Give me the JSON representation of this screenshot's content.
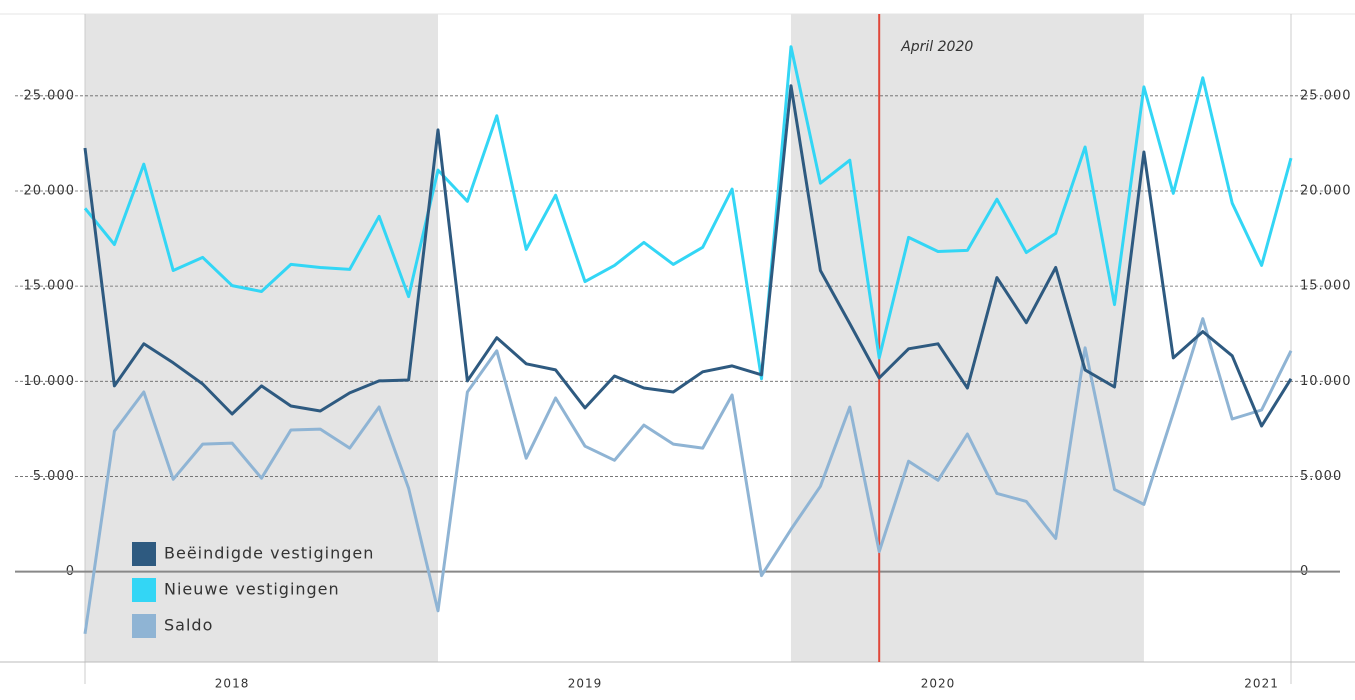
{
  "chart_data": {
    "type": "line",
    "categories": [
      null,
      null,
      null,
      null,
      null,
      "2018",
      null,
      null,
      null,
      null,
      null,
      null,
      null,
      null,
      null,
      null,
      null,
      "2019",
      null,
      null,
      null,
      null,
      null,
      null,
      null,
      null,
      null,
      null,
      null,
      "2020",
      null,
      null,
      null,
      null,
      null,
      null,
      null,
      null,
      null,
      null,
      "2021",
      null
    ],
    "series": [
      {
        "name": "Beëindigde vestigingen",
        "color": "#2e5a80",
        "values": [
          22260,
          9760,
          11970,
          10970,
          9860,
          8280,
          9760,
          8700,
          8440,
          9390,
          10020,
          10070,
          23210,
          10020,
          12290,
          10920,
          10600,
          8600,
          10280,
          9650,
          9440,
          10500,
          10810,
          10340,
          25530,
          15820,
          13030,
          10180,
          11710,
          11970,
          9650,
          15450,
          13080,
          15980,
          10600,
          9700,
          22050,
          11230,
          12610,
          11340,
          7650,
          10130
        ]
      },
      {
        "name": "Nieuwe vestigingen",
        "color": "#33d6f5",
        "values": [
          19090,
          17190,
          21410,
          15820,
          16510,
          15030,
          14720,
          16140,
          15980,
          15880,
          18670,
          14450,
          21100,
          19460,
          23950,
          16930,
          19780,
          15240,
          16090,
          17300,
          16140,
          17040,
          20100,
          10130,
          27580,
          20410,
          21620,
          11230,
          17560,
          16820,
          16880,
          19570,
          16770,
          17770,
          22310,
          14030,
          25470,
          19880,
          25950,
          19360,
          16090,
          21730
        ]
      },
      {
        "name": "Saldo",
        "color": "#8fb4d4",
        "values": [
          -3270,
          7380,
          9440,
          4850,
          6700,
          6750,
          4910,
          7440,
          7490,
          6490,
          8650,
          4380,
          -2060,
          9440,
          11600,
          5960,
          9120,
          6590,
          5850,
          7700,
          6700,
          6490,
          9280,
          -210,
          2220,
          4480,
          8650,
          1050,
          5800,
          4800,
          7230,
          4110,
          3690,
          1740,
          11760,
          4320,
          3530,
          8330,
          13290,
          8020,
          8490,
          11600
        ]
      }
    ],
    "ylim": [
      -4750,
      29300
    ],
    "yticks": [
      0,
      {
        "value": 5000,
        "label": "5.000"
      },
      {
        "value": 10000,
        "label": "10.000"
      },
      {
        "value": 15000,
        "label": "15.000"
      },
      {
        "value": 20000,
        "label": "20.000"
      },
      {
        "value": 25000,
        "label": "25.000"
      }
    ],
    "grid": true,
    "shaded_spans": [
      [
        0,
        12
      ],
      [
        24,
        36
      ]
    ],
    "annotation": {
      "text": "April 2020",
      "category_index": 27,
      "color": "#e0473a"
    },
    "legend": "lower-left"
  }
}
